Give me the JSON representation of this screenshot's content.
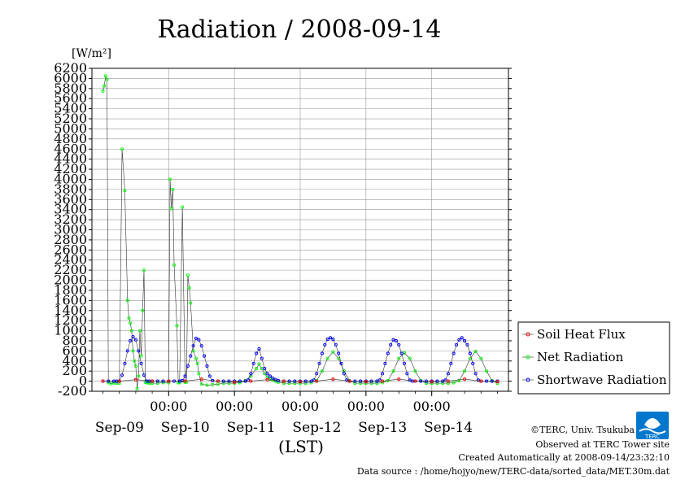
{
  "chart_data": {
    "type": "line",
    "title": "Radiation / 2008-09-14",
    "ylabel": "[W/m²]",
    "xlabel": "(LST)",
    "ylim": [
      -200,
      6200
    ],
    "yticks": [
      -200,
      0,
      200,
      400,
      600,
      800,
      1000,
      1200,
      1400,
      1600,
      1800,
      2000,
      2200,
      2400,
      2600,
      2800,
      3000,
      3200,
      3400,
      3600,
      3800,
      4000,
      4200,
      4400,
      4600,
      4800,
      5000,
      5200,
      5400,
      5600,
      5800,
      6000,
      6200
    ],
    "xlim_hours": [
      0,
      144
    ],
    "x_time_labels": [
      "00:00",
      "00:00",
      "00:00",
      "00:00",
      "00:00"
    ],
    "x_day_labels": [
      "Sep-09",
      "Sep-10",
      "Sep-11",
      "Sep-12",
      "Sep-13",
      "Sep-14"
    ],
    "grid": true,
    "legend_placement": "right",
    "series": [
      {
        "name": "Soil Heat Flux",
        "color": "#ff0000",
        "marker": "circle",
        "x": [
          0,
          6,
          12,
          18,
          24,
          30,
          36,
          42,
          48,
          54,
          60,
          66,
          72,
          78,
          84,
          90,
          96,
          102,
          108,
          114,
          120,
          126,
          132,
          138,
          144
        ],
        "y": [
          0,
          0,
          30,
          0,
          0,
          0,
          40,
          0,
          -20,
          0,
          30,
          0,
          -10,
          0,
          40,
          0,
          -10,
          0,
          40,
          0,
          -10,
          0,
          40,
          0,
          -10
        ]
      },
      {
        "name": "Net Radiation",
        "color": "#00ff00",
        "marker": "circle",
        "x": [
          0,
          0.5,
          1,
          1.5,
          2,
          3,
          4,
          5,
          6,
          7,
          8,
          9,
          9.5,
          10,
          10.5,
          11,
          11.5,
          12,
          12.5,
          13,
          13.5,
          14,
          14.5,
          15,
          15.5,
          16,
          16.5,
          17,
          18,
          20,
          22,
          24,
          24.5,
          25,
          25.5,
          26,
          27,
          27.5,
          28,
          29,
          30,
          30.5,
          31,
          31.5,
          32,
          33,
          34,
          34.5,
          35,
          36,
          38,
          40,
          42,
          44,
          46,
          48,
          50,
          52,
          54,
          56,
          57,
          58,
          59,
          60,
          61,
          62,
          63,
          64,
          66,
          68,
          70,
          72,
          74,
          76,
          78,
          80,
          82,
          84,
          86,
          88,
          90,
          92,
          94,
          96,
          98,
          100,
          102,
          104,
          106,
          108,
          110,
          112,
          114,
          116,
          118,
          120,
          122,
          124,
          126,
          128,
          130,
          132,
          134,
          136,
          138,
          140,
          142,
          144
        ],
        "y": [
          5750,
          5850,
          6050,
          5980,
          -30,
          -50,
          -30,
          -40,
          -40,
          4600,
          3780,
          1600,
          1250,
          1150,
          1000,
          600,
          400,
          300,
          -150,
          100,
          1000,
          500,
          1400,
          2200,
          -20,
          -30,
          -30,
          -40,
          -40,
          -40,
          -30,
          -30,
          4000,
          3420,
          3800,
          2300,
          1100,
          -30,
          -30,
          3450,
          -20,
          -20,
          2100,
          1850,
          1550,
          600,
          450,
          350,
          150,
          -60,
          -80,
          -70,
          -60,
          -40,
          -40,
          -40,
          -30,
          10,
          100,
          250,
          340,
          250,
          150,
          80,
          40,
          20,
          0,
          -20,
          -40,
          -40,
          -40,
          -40,
          -40,
          -30,
          10,
          200,
          450,
          580,
          450,
          200,
          10,
          -40,
          -40,
          -40,
          -40,
          -40,
          -30,
          10,
          200,
          450,
          560,
          450,
          200,
          10,
          -40,
          -40,
          -40,
          -40,
          -40,
          -30,
          10,
          200,
          450,
          590,
          450,
          200,
          10,
          -40
        ]
      },
      {
        "name": "Shortwave Radiation",
        "color": "#0000ff",
        "marker": "circle",
        "x": [
          0,
          2,
          4,
          5,
          6,
          7,
          8,
          9,
          10,
          11,
          12,
          13,
          14,
          15,
          16,
          17,
          18,
          20,
          22,
          24,
          26,
          28,
          29,
          30,
          31,
          32,
          33,
          34,
          35,
          36,
          37,
          38,
          39,
          40,
          42,
          44,
          46,
          48,
          50,
          52,
          53,
          54,
          55,
          56,
          57,
          58,
          59,
          60,
          61,
          62,
          63,
          64,
          66,
          68,
          70,
          72,
          74,
          76,
          77,
          78,
          79,
          80,
          81,
          82,
          83,
          84,
          85,
          86,
          87,
          88,
          89,
          90,
          92,
          94,
          96,
          98,
          100,
          101,
          102,
          103,
          104,
          105,
          106,
          107,
          108,
          109,
          110,
          111,
          112,
          113,
          114,
          116,
          118,
          120,
          122,
          124,
          125,
          126,
          127,
          128,
          129,
          130,
          131,
          132,
          133,
          134,
          135,
          136,
          137,
          138,
          140,
          142,
          144
        ],
        "y": [
          0,
          0,
          0,
          0,
          0,
          120,
          350,
          600,
          800,
          880,
          820,
          600,
          350,
          120,
          0,
          0,
          0,
          0,
          0,
          0,
          0,
          0,
          10,
          100,
          300,
          500,
          700,
          850,
          820,
          700,
          500,
          300,
          100,
          10,
          0,
          0,
          0,
          0,
          0,
          0,
          20,
          150,
          350,
          550,
          640,
          450,
          250,
          150,
          100,
          60,
          30,
          10,
          0,
          0,
          0,
          0,
          0,
          0,
          20,
          150,
          350,
          550,
          720,
          830,
          860,
          830,
          720,
          550,
          350,
          150,
          20,
          0,
          0,
          0,
          0,
          0,
          0,
          20,
          150,
          350,
          550,
          720,
          820,
          800,
          720,
          550,
          350,
          150,
          20,
          0,
          0,
          0,
          0,
          0,
          0,
          0,
          20,
          150,
          350,
          550,
          720,
          820,
          860,
          800,
          720,
          550,
          350,
          150,
          20,
          0,
          0,
          0,
          0
        ]
      }
    ]
  },
  "footer": {
    "copyright": "©TERC, Univ. Tsukuba",
    "observed": "Observed at TERC Tower site",
    "created": "Created Automatically at 2008-09-14/23:32:10",
    "source": "Data source : /home/hojyo/new/TERC-data/sorted_data/MET.30m.dat"
  },
  "logo": {
    "text": "TERC",
    "color": "#0077cc"
  }
}
